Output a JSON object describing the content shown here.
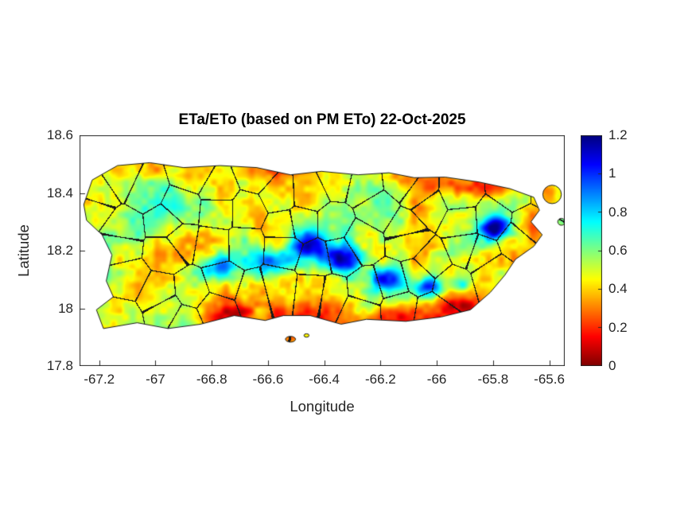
{
  "figure": {
    "title": "ETa/ETo (based on PM ETo) 22-Oct-2025",
    "xlabel": "Longitude",
    "ylabel": "Latitude",
    "background_color": "#ffffff",
    "axis_color": "#262626"
  },
  "chart_data": {
    "type": "heatmap",
    "title": "ETa/ETo (based on PM ETo) 22-Oct-2025",
    "xlabel": "Longitude",
    "ylabel": "Latitude",
    "region": "Puerto Rico with municipal boundaries",
    "xlim": [
      -67.27,
      -65.545
    ],
    "ylim": [
      17.8,
      18.6
    ],
    "xticks": [
      -67.2,
      -67,
      -66.8,
      -66.6,
      -66.4,
      -66.2,
      -66,
      -65.8,
      -65.6
    ],
    "xtick_labels": [
      "-67.2",
      "-67",
      "-66.8",
      "-66.6",
      "-66.4",
      "-66.2",
      "-66",
      "-65.8",
      "-65.6"
    ],
    "yticks": [
      17.8,
      18,
      18.2,
      18.4,
      18.6
    ],
    "ytick_labels": [
      "17.8",
      "18",
      "18.2",
      "18.4",
      "18.6"
    ],
    "grid": false,
    "colorbar": {
      "min": 0,
      "max": 1.2,
      "ticks": [
        0,
        0.2,
        0.4,
        0.6,
        0.8,
        1,
        1.2
      ],
      "tick_labels": [
        "0",
        "0.2",
        "0.4",
        "0.6",
        "0.8",
        "1",
        "1.2"
      ],
      "colormap": "jet_reversed_low_is_red",
      "location": "right"
    },
    "features": [
      {
        "value_range": "0.9-1.2 (blue)",
        "where": "central cordillera ridge, lon -66.8 to -65.9, lat 18.05-18.25"
      },
      {
        "value_range": "1.0-1.2 (dark blue)",
        "where": "El Yunque area, lon -65.79, lat 18.28"
      },
      {
        "value_range": "0-0.3 (red)",
        "where": "south coastal plain, lat below 18.05"
      },
      {
        "value_range": "0-0.35 (red/orange)",
        "where": "northeast and east coast, lon greater than -66.2"
      },
      {
        "value_range": "0.4-0.7 (yellow/green)",
        "where": "western and northern interior lowlands"
      }
    ],
    "coastline": [
      [
        -67.255,
        18.36
      ],
      [
        -67.225,
        18.445
      ],
      [
        -67.135,
        18.495
      ],
      [
        -67.02,
        18.505
      ],
      [
        -66.9,
        18.488
      ],
      [
        -66.77,
        18.495
      ],
      [
        -66.64,
        18.488
      ],
      [
        -66.52,
        18.463
      ],
      [
        -66.41,
        18.475
      ],
      [
        -66.28,
        18.463
      ],
      [
        -66.17,
        18.47
      ],
      [
        -66.08,
        18.453
      ],
      [
        -65.97,
        18.455
      ],
      [
        -65.85,
        18.438
      ],
      [
        -65.74,
        18.415
      ],
      [
        -65.655,
        18.385
      ],
      [
        -65.635,
        18.34
      ],
      [
        -65.665,
        18.3
      ],
      [
        -65.625,
        18.255
      ],
      [
        -65.655,
        18.215
      ],
      [
        -65.72,
        18.17
      ],
      [
        -65.758,
        18.115
      ],
      [
        -65.81,
        18.055
      ],
      [
        -65.88,
        17.995
      ],
      [
        -65.985,
        17.97
      ],
      [
        -66.11,
        17.955
      ],
      [
        -66.25,
        17.962
      ],
      [
        -66.34,
        17.945
      ],
      [
        -66.45,
        17.975
      ],
      [
        -66.545,
        17.975
      ],
      [
        -66.61,
        17.958
      ],
      [
        -66.72,
        17.975
      ],
      [
        -66.84,
        17.945
      ],
      [
        -66.955,
        17.93
      ],
      [
        -67.065,
        17.95
      ],
      [
        -67.185,
        17.93
      ],
      [
        -67.21,
        17.995
      ],
      [
        -67.15,
        18.04
      ],
      [
        -67.175,
        18.095
      ],
      [
        -67.155,
        18.185
      ],
      [
        -67.19,
        18.255
      ],
      [
        -67.245,
        18.305
      ]
    ],
    "islets": [
      {
        "c": [
          -65.59,
          18.395
        ],
        "rx": 0.033,
        "ry": 0.032
      },
      {
        "c": [
          -65.557,
          18.3
        ],
        "rx": 0.013,
        "ry": 0.012
      },
      {
        "c": [
          -66.52,
          17.893
        ],
        "rx": 0.018,
        "ry": 0.01
      },
      {
        "c": [
          -66.463,
          17.906
        ],
        "rx": 0.009,
        "ry": 0.006
      }
    ],
    "render": {
      "field": {
        "base": 0.5,
        "octaves": [
          [
            6,
            0.15
          ],
          [
            16,
            0.1
          ],
          [
            45,
            0.07
          ]
        ],
        "bumps": [
          [
            -66.78,
            18.14,
            0.07,
            0.04,
            0.4
          ],
          [
            -66.58,
            18.16,
            0.08,
            0.045,
            0.5
          ],
          [
            -66.45,
            18.22,
            0.06,
            0.05,
            0.62
          ],
          [
            -66.33,
            18.17,
            0.07,
            0.045,
            0.55
          ],
          [
            -66.18,
            18.1,
            0.06,
            0.04,
            0.5
          ],
          [
            -66.03,
            18.07,
            0.055,
            0.035,
            0.55
          ],
          [
            -65.92,
            18.08,
            0.04,
            0.03,
            0.35
          ],
          [
            -65.79,
            18.28,
            0.055,
            0.042,
            0.8
          ],
          [
            -67.05,
            18.3,
            0.09,
            0.06,
            0.18
          ],
          [
            -66.9,
            18.35,
            0.08,
            0.05,
            0.12
          ],
          [
            -66.75,
            17.97,
            0.12,
            0.055,
            -0.3
          ],
          [
            -66.45,
            17.97,
            0.13,
            0.055,
            -0.33
          ],
          [
            -66.15,
            17.96,
            0.12,
            0.05,
            -0.3
          ],
          [
            -65.92,
            18.0,
            0.09,
            0.045,
            -0.28
          ],
          [
            -66.1,
            18.45,
            0.15,
            0.035,
            -0.25
          ],
          [
            -65.82,
            18.42,
            0.12,
            0.04,
            -0.3
          ],
          [
            -65.66,
            18.3,
            0.055,
            0.08,
            -0.26
          ],
          [
            -66.55,
            18.48,
            0.15,
            0.03,
            -0.18
          ],
          [
            -67.05,
            18.48,
            0.12,
            0.03,
            -0.15
          ],
          [
            -67.18,
            18.05,
            0.06,
            0.05,
            -0.18
          ],
          [
            -65.59,
            18.4,
            0.05,
            0.04,
            -0.25
          ],
          [
            -66.52,
            17.89,
            0.03,
            0.02,
            -0.2
          ]
        ]
      },
      "boundaries": {
        "cols": 16,
        "rows": 7,
        "seed": 12345
      }
    }
  }
}
